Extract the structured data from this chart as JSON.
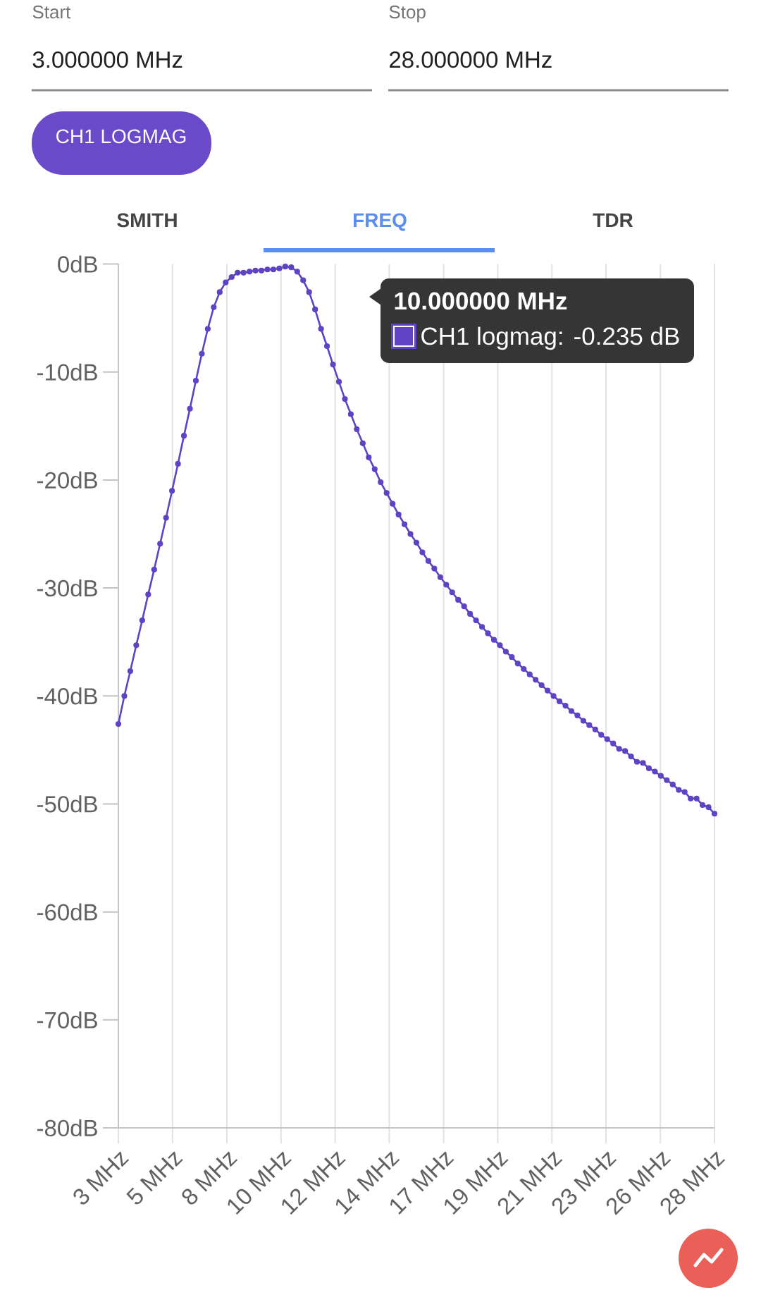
{
  "chart_data": {
    "type": "line",
    "color": "#5e44c4",
    "marker": "circle",
    "line_style": "solid",
    "grid": "x",
    "x": [
      3,
      3.25,
      3.5,
      3.75,
      4,
      4.25,
      4.5,
      4.75,
      5,
      5.25,
      5.5,
      5.75,
      6,
      6.25,
      6.5,
      6.75,
      7,
      7.25,
      7.5,
      7.75,
      8,
      8.25,
      8.5,
      8.75,
      9,
      9.25,
      9.5,
      9.75,
      10,
      10.25,
      10.5,
      10.75,
      11,
      11.25,
      11.5,
      11.75,
      12,
      12.25,
      12.5,
      12.75,
      13,
      13.25,
      13.5,
      13.75,
      14,
      14.25,
      14.5,
      14.75,
      15,
      15.25,
      15.5,
      15.75,
      16,
      16.25,
      16.5,
      16.75,
      17,
      17.25,
      17.5,
      17.75,
      18,
      18.25,
      18.5,
      18.75,
      19,
      19.25,
      19.5,
      19.75,
      20,
      20.25,
      20.5,
      20.75,
      21,
      21.25,
      21.5,
      21.75,
      22,
      22.25,
      22.5,
      22.75,
      23,
      23.25,
      23.5,
      23.75,
      24,
      24.25,
      24.5,
      24.75,
      25,
      25.25,
      25.5,
      25.75,
      26,
      26.25,
      26.5,
      26.75,
      27,
      27.25,
      27.5,
      27.75,
      28
    ],
    "values": [
      -42.6,
      -40.0,
      -37.7,
      -35.3,
      -33.0,
      -30.6,
      -28.3,
      -25.9,
      -23.5,
      -21.0,
      -18.5,
      -15.9,
      -13.4,
      -10.8,
      -8.3,
      -6.0,
      -4.0,
      -2.6,
      -1.7,
      -1.2,
      -0.8,
      -0.8,
      -0.7,
      -0.6,
      -0.6,
      -0.5,
      -0.5,
      -0.4,
      -0.235,
      -0.3,
      -0.7,
      -1.5,
      -2.6,
      -4.2,
      -6.0,
      -7.6,
      -9.3,
      -10.9,
      -12.5,
      -13.9,
      -15.3,
      -16.6,
      -17.9,
      -19.0,
      -20.2,
      -21.2,
      -22.2,
      -23.2,
      -24.1,
      -25.0,
      -25.8,
      -26.7,
      -27.5,
      -28.2,
      -29.0,
      -29.7,
      -30.4,
      -31.1,
      -31.7,
      -32.4,
      -33.0,
      -33.6,
      -34.2,
      -34.8,
      -35.3,
      -35.9,
      -36.4,
      -37.0,
      -37.5,
      -38.0,
      -38.5,
      -39.0,
      -39.5,
      -40.0,
      -40.5,
      -40.9,
      -41.4,
      -41.8,
      -42.3,
      -42.7,
      -43.1,
      -43.6,
      -44.0,
      -44.4,
      -44.9,
      -45.1,
      -45.6,
      -46.1,
      -46.2,
      -46.7,
      -47.0,
      -47.4,
      -47.8,
      -48.2,
      -48.7,
      -48.9,
      -49.5,
      -49.5,
      -50.1,
      -50.3,
      -50.9
    ],
    "xlim": [
      3,
      28
    ],
    "ylim": [
      -80,
      0
    ],
    "xticks": [
      {
        "value": 3,
        "label": "3 MHz"
      },
      {
        "value": 5.27,
        "label": "5 MHz"
      },
      {
        "value": 7.55,
        "label": "8 MHz"
      },
      {
        "value": 9.82,
        "label": "10 MHz"
      },
      {
        "value": 12.09,
        "label": "12 MHz"
      },
      {
        "value": 14.36,
        "label": "14 MHz"
      },
      {
        "value": 16.64,
        "label": "17 MHz"
      },
      {
        "value": 18.91,
        "label": "19 MHz"
      },
      {
        "value": 21.18,
        "label": "21 MHz"
      },
      {
        "value": 23.45,
        "label": "23 MHz"
      },
      {
        "value": 25.73,
        "label": "26 MHz"
      },
      {
        "value": 28,
        "label": "28 MHz"
      }
    ],
    "yticks": [
      {
        "value": -80,
        "label": "-80dB"
      },
      {
        "value": -70,
        "label": "-70dB"
      },
      {
        "value": -60,
        "label": "-60dB"
      },
      {
        "value": -50,
        "label": "-50dB"
      },
      {
        "value": -40,
        "label": "-40dB"
      },
      {
        "value": -30,
        "label": "-30dB"
      },
      {
        "value": -20,
        "label": "-20dB"
      },
      {
        "value": -10,
        "label": "-10dB"
      },
      {
        "value": 0,
        "label": "0dB"
      }
    ],
    "annotations": [
      "Start",
      "3.000000 MHz",
      "Stop",
      "28.000000 MHz",
      "CH1 LOGMAG",
      "SMITH",
      "FREQ",
      "TDR",
      "10.000000 MHz",
      "CH1 logmag: -0.235 dB"
    ]
  }
}
